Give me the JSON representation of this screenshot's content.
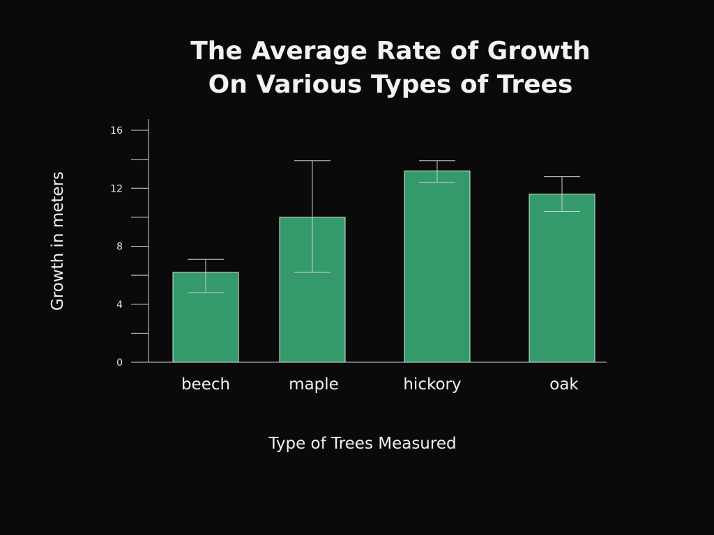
{
  "chart_data": {
    "type": "bar",
    "title": [
      "The Average Rate of Growth",
      "On Various Types of Trees"
    ],
    "xlabel": "Type of Trees Measured",
    "ylabel": "Growth in meters",
    "categories": [
      "beech",
      "maple",
      "hickory",
      "oak"
    ],
    "values": [
      6.2,
      10.0,
      13.2,
      11.6
    ],
    "error_low": [
      4.8,
      6.2,
      12.4,
      10.4
    ],
    "error_high": [
      7.1,
      13.9,
      13.9,
      12.8
    ],
    "ylim": [
      0,
      16
    ],
    "yticks": [
      0,
      4,
      8,
      12,
      16
    ],
    "minor_yticks": [
      2,
      6,
      10,
      14
    ],
    "grid": false,
    "bar_color": "#359a6b",
    "background": "#0a0a0a",
    "text_color": "#f2f2f2"
  }
}
